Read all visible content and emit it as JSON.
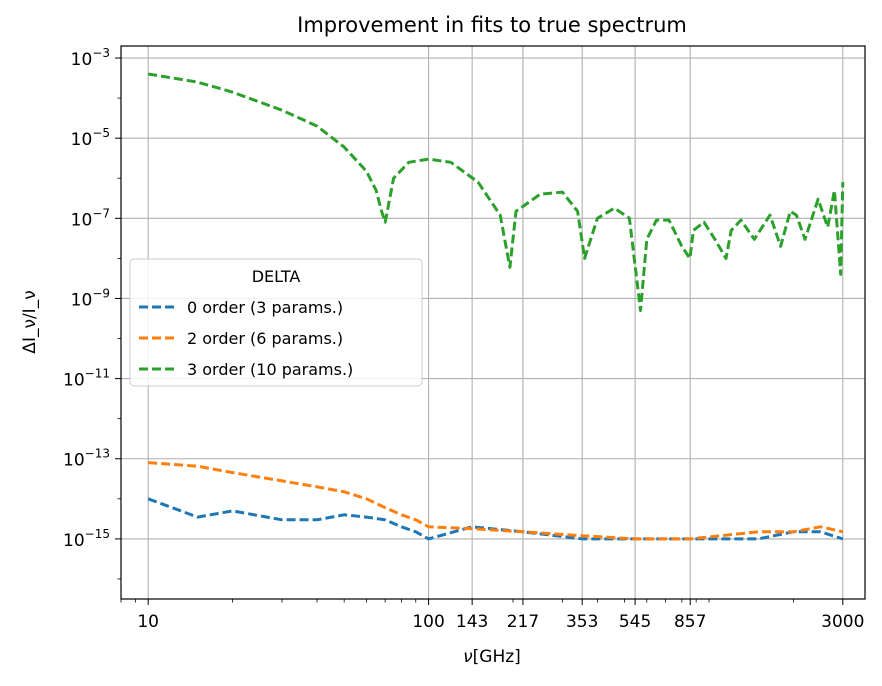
{
  "chart_data": {
    "type": "line",
    "title": "Improvement in fits to true spectrum",
    "xlabel_main": "ν",
    "xlabel_unit": "[GHz]",
    "ylabel": "ΔI_ν/I_ν",
    "x_scale": "log",
    "y_scale": "log",
    "xlim": [
      8.0,
      3600
    ],
    "ylim_exp": [
      -16.5,
      -2.7
    ],
    "grid": true,
    "x_ticks": [
      10,
      100,
      143,
      217,
      353,
      545,
      857,
      3000
    ],
    "x_tick_labels": [
      "10",
      "100",
      "143",
      "217",
      "353",
      "545",
      "857",
      "3000"
    ],
    "y_tick_exponents": [
      -3,
      -5,
      -7,
      -9,
      -11,
      -13,
      -15
    ],
    "legend": {
      "title": "DELTA",
      "placement": "center-left"
    },
    "series": [
      {
        "name": "0 order (3 params.)",
        "color": "#1f77b4",
        "x": [
          10,
          15,
          20,
          30,
          40,
          50,
          60,
          70,
          80,
          90,
          100,
          143,
          217,
          353,
          545,
          857,
          1500,
          2000,
          2500,
          3000
        ],
        "y": [
          1e-14,
          3.5e-15,
          5e-15,
          3e-15,
          3e-15,
          4e-15,
          3.5e-15,
          3e-15,
          2e-15,
          1.5e-15,
          1e-15,
          2e-15,
          1.5e-15,
          1e-15,
          1e-15,
          1e-15,
          1e-15,
          1.5e-15,
          1.5e-15,
          1e-15
        ]
      },
      {
        "name": "2 order (6 params.)",
        "color": "#ff7f0e",
        "x": [
          10,
          15,
          20,
          30,
          40,
          50,
          60,
          70,
          80,
          90,
          100,
          143,
          217,
          353,
          545,
          857,
          1500,
          2000,
          2500,
          3000
        ],
        "y": [
          8e-14,
          6.5e-14,
          4.5e-14,
          2.8e-14,
          2e-14,
          1.5e-14,
          1e-14,
          6e-15,
          4e-15,
          3e-15,
          2e-15,
          1.8e-15,
          1.5e-15,
          1.2e-15,
          1e-15,
          1e-15,
          1.5e-15,
          1.5e-15,
          2e-15,
          1.5e-15
        ]
      },
      {
        "name": "3 order (10 params.)",
        "color": "#2ca02c",
        "x": [
          10,
          15,
          20,
          30,
          40,
          50,
          60,
          65,
          68,
          70,
          75,
          85,
          100,
          120,
          150,
          180,
          195,
          205,
          250,
          300,
          340,
          360,
          400,
          460,
          520,
          570,
          600,
          650,
          720,
          800,
          855,
          880,
          960,
          1050,
          1150,
          1200,
          1300,
          1450,
          1650,
          1800,
          1950,
          2050,
          2200,
          2450,
          2650,
          2800,
          2950,
          3000
        ],
        "y": [
          0.0004,
          0.00025,
          0.00014,
          5e-05,
          2e-05,
          6e-06,
          1.5e-06,
          5e-07,
          1.5e-07,
          8e-08,
          1e-06,
          2.5e-06,
          3e-06,
          2.5e-06,
          8e-07,
          1.2e-07,
          6e-09,
          1.5e-07,
          4e-07,
          4.5e-07,
          1.5e-07,
          1e-08,
          1e-07,
          1.8e-07,
          1e-07,
          5e-10,
          3e-08,
          9e-08,
          9e-08,
          2e-08,
          1e-08,
          5e-08,
          8e-08,
          3e-08,
          1e-08,
          5e-08,
          9e-08,
          3e-08,
          1.2e-07,
          2e-08,
          1.5e-07,
          1.2e-07,
          3e-08,
          3e-07,
          6e-08,
          5e-07,
          4e-09,
          8e-07
        ]
      }
    ]
  }
}
